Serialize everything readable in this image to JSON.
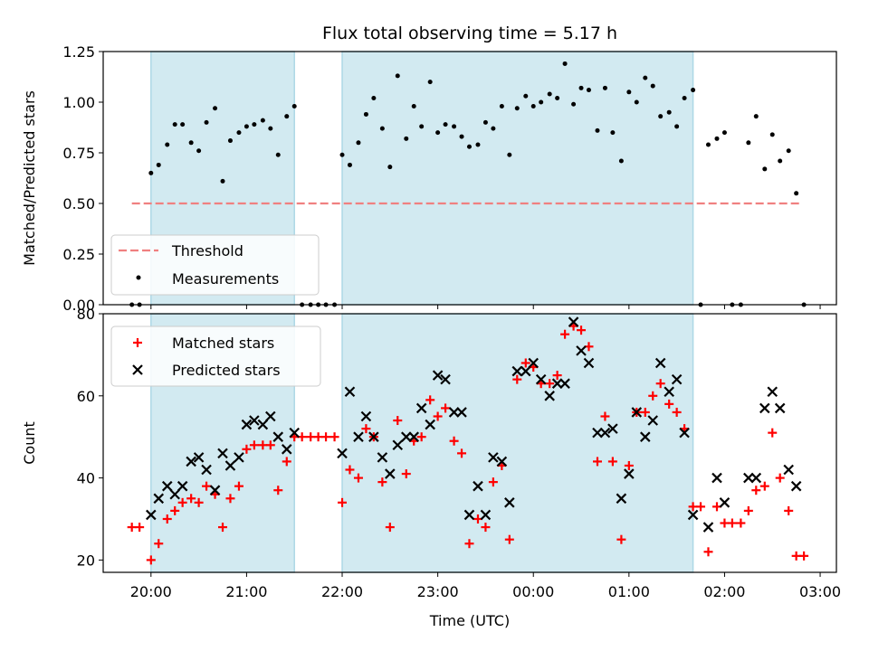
{
  "title": "Flux total observing time = 5.17 h",
  "colors": {
    "shade": "#add8e6",
    "threshold": "#f08080",
    "measurement": "#000000",
    "matched": "#ff0000",
    "predicted": "#000000"
  },
  "x_axis": {
    "label": "Time (UTC)",
    "ticks": [
      {
        "h": 20,
        "label": "20:00"
      },
      {
        "h": 21,
        "label": "21:00"
      },
      {
        "h": 22,
        "label": "22:00"
      },
      {
        "h": 23,
        "label": "23:00"
      },
      {
        "h": 24,
        "label": "00:00"
      },
      {
        "h": 25,
        "label": "01:00"
      },
      {
        "h": 26,
        "label": "02:00"
      },
      {
        "h": 27,
        "label": "03:00"
      }
    ]
  },
  "chart_data": [
    {
      "type": "scatter",
      "ylabel": "Matched/Predicted stars",
      "ylim": [
        0,
        1.25
      ],
      "yticks": [
        "0.00",
        "0.25",
        "0.50",
        "0.75",
        "1.00",
        "1.25"
      ],
      "shaded_intervals": [
        [
          20.0,
          21.5
        ],
        [
          22.0,
          25.67
        ]
      ],
      "legend_position": "lower-left",
      "threshold": {
        "name": "Threshold",
        "value": 0.5,
        "x_range": [
          19.8,
          26.8
        ]
      },
      "series": [
        {
          "name": "Measurements",
          "points": [
            [
              19.8,
              0
            ],
            [
              19.88,
              0
            ],
            [
              20.0,
              0.65
            ],
            [
              20.08,
              0.69
            ],
            [
              20.17,
              0.79
            ],
            [
              20.25,
              0.89
            ],
            [
              20.33,
              0.89
            ],
            [
              20.42,
              0.8
            ],
            [
              20.5,
              0.76
            ],
            [
              20.58,
              0.9
            ],
            [
              20.67,
              0.97
            ],
            [
              20.75,
              0.61
            ],
            [
              20.83,
              0.81
            ],
            [
              20.92,
              0.85
            ],
            [
              21.0,
              0.88
            ],
            [
              21.08,
              0.89
            ],
            [
              21.17,
              0.91
            ],
            [
              21.25,
              0.87
            ],
            [
              21.33,
              0.74
            ],
            [
              21.42,
              0.93
            ],
            [
              21.5,
              0.98
            ],
            [
              21.58,
              0
            ],
            [
              21.67,
              0
            ],
            [
              21.75,
              0
            ],
            [
              21.83,
              0
            ],
            [
              21.92,
              0
            ],
            [
              22.0,
              0.74
            ],
            [
              22.08,
              0.69
            ],
            [
              22.17,
              0.8
            ],
            [
              22.25,
              0.94
            ],
            [
              22.33,
              1.02
            ],
            [
              22.42,
              0.87
            ],
            [
              22.5,
              0.68
            ],
            [
              22.58,
              1.13
            ],
            [
              22.67,
              0.82
            ],
            [
              22.75,
              0.98
            ],
            [
              22.83,
              0.88
            ],
            [
              22.92,
              1.1
            ],
            [
              23.0,
              0.85
            ],
            [
              23.08,
              0.89
            ],
            [
              23.17,
              0.88
            ],
            [
              23.25,
              0.83
            ],
            [
              23.33,
              0.78
            ],
            [
              23.42,
              0.79
            ],
            [
              23.5,
              0.9
            ],
            [
              23.58,
              0.87
            ],
            [
              23.67,
              0.98
            ],
            [
              23.75,
              0.74
            ],
            [
              23.83,
              0.97
            ],
            [
              23.92,
              1.03
            ],
            [
              24.0,
              0.98
            ],
            [
              24.08,
              1.0
            ],
            [
              24.17,
              1.04
            ],
            [
              24.25,
              1.02
            ],
            [
              24.33,
              1.19
            ],
            [
              24.42,
              0.99
            ],
            [
              24.5,
              1.07
            ],
            [
              24.58,
              1.06
            ],
            [
              24.67,
              0.86
            ],
            [
              24.75,
              1.07
            ],
            [
              24.83,
              0.85
            ],
            [
              24.92,
              0.71
            ],
            [
              25.0,
              1.05
            ],
            [
              25.08,
              1.0
            ],
            [
              25.17,
              1.12
            ],
            [
              25.25,
              1.08
            ],
            [
              25.33,
              0.93
            ],
            [
              25.42,
              0.95
            ],
            [
              25.5,
              0.88
            ],
            [
              25.58,
              1.02
            ],
            [
              25.67,
              1.06
            ],
            [
              25.75,
              0
            ],
            [
              25.83,
              0.79
            ],
            [
              25.92,
              0.82
            ],
            [
              26.0,
              0.85
            ],
            [
              26.08,
              0
            ],
            [
              26.17,
              0
            ],
            [
              26.25,
              0.8
            ],
            [
              26.33,
              0.93
            ],
            [
              26.42,
              0.67
            ],
            [
              26.5,
              0.84
            ],
            [
              26.58,
              0.71
            ],
            [
              26.67,
              0.76
            ],
            [
              26.75,
              0.55
            ],
            [
              26.83,
              0
            ]
          ]
        }
      ]
    },
    {
      "type": "scatter",
      "ylabel": "Count",
      "ylim": [
        17,
        80
      ],
      "yticks": [
        "20",
        "40",
        "60",
        "80"
      ],
      "shaded_intervals": [
        [
          20.0,
          21.5
        ],
        [
          22.0,
          25.67
        ]
      ],
      "legend_position": "upper-left",
      "series": [
        {
          "name": "Matched stars",
          "points": [
            [
              19.8,
              28
            ],
            [
              19.88,
              28
            ],
            [
              20.0,
              20
            ],
            [
              20.08,
              24
            ],
            [
              20.17,
              30
            ],
            [
              20.25,
              32
            ],
            [
              20.33,
              34
            ],
            [
              20.42,
              35
            ],
            [
              20.5,
              34
            ],
            [
              20.58,
              38
            ],
            [
              20.67,
              36
            ],
            [
              20.75,
              28
            ],
            [
              20.83,
              35
            ],
            [
              20.92,
              38
            ],
            [
              21.0,
              47
            ],
            [
              21.08,
              48
            ],
            [
              21.17,
              48
            ],
            [
              21.25,
              48
            ],
            [
              21.33,
              37
            ],
            [
              21.42,
              44
            ],
            [
              21.5,
              50
            ],
            [
              21.58,
              50
            ],
            [
              21.67,
              50
            ],
            [
              21.75,
              50
            ],
            [
              21.83,
              50
            ],
            [
              21.92,
              50
            ],
            [
              22.0,
              34
            ],
            [
              22.08,
              42
            ],
            [
              22.17,
              40
            ],
            [
              22.25,
              52
            ],
            [
              22.33,
              50
            ],
            [
              22.42,
              39
            ],
            [
              22.5,
              28
            ],
            [
              22.58,
              54
            ],
            [
              22.67,
              41
            ],
            [
              22.75,
              49
            ],
            [
              22.83,
              50
            ],
            [
              22.92,
              59
            ],
            [
              23.0,
              55
            ],
            [
              23.08,
              57
            ],
            [
              23.17,
              49
            ],
            [
              23.25,
              46
            ],
            [
              23.33,
              24
            ],
            [
              23.42,
              30
            ],
            [
              23.5,
              28
            ],
            [
              23.58,
              39
            ],
            [
              23.67,
              43
            ],
            [
              23.75,
              25
            ],
            [
              23.83,
              64
            ],
            [
              23.92,
              68
            ],
            [
              24.0,
              67
            ],
            [
              24.08,
              63
            ],
            [
              24.17,
              63
            ],
            [
              24.25,
              65
            ],
            [
              24.33,
              75
            ],
            [
              24.42,
              77
            ],
            [
              24.5,
              76
            ],
            [
              24.58,
              72
            ],
            [
              24.67,
              44
            ],
            [
              24.75,
              55
            ],
            [
              24.83,
              44
            ],
            [
              24.92,
              25
            ],
            [
              25.0,
              43
            ],
            [
              25.08,
              56
            ],
            [
              25.17,
              56
            ],
            [
              25.25,
              60
            ],
            [
              25.33,
              63
            ],
            [
              25.42,
              58
            ],
            [
              25.5,
              56
            ],
            [
              25.58,
              52
            ],
            [
              25.67,
              33
            ],
            [
              25.75,
              33
            ],
            [
              25.83,
              22
            ],
            [
              25.92,
              33
            ],
            [
              26.0,
              29
            ],
            [
              26.08,
              29
            ],
            [
              26.17,
              29
            ],
            [
              26.25,
              32
            ],
            [
              26.33,
              37
            ],
            [
              26.42,
              38
            ],
            [
              26.5,
              51
            ],
            [
              26.58,
              40
            ],
            [
              26.67,
              32
            ],
            [
              26.75,
              21
            ],
            [
              26.83,
              21
            ]
          ]
        },
        {
          "name": "Predicted stars",
          "points": [
            [
              20.0,
              31
            ],
            [
              20.08,
              35
            ],
            [
              20.17,
              38
            ],
            [
              20.25,
              36
            ],
            [
              20.33,
              38
            ],
            [
              20.42,
              44
            ],
            [
              20.5,
              45
            ],
            [
              20.58,
              42
            ],
            [
              20.67,
              37
            ],
            [
              20.75,
              46
            ],
            [
              20.83,
              43
            ],
            [
              20.92,
              45
            ],
            [
              21.0,
              53
            ],
            [
              21.08,
              54
            ],
            [
              21.17,
              53
            ],
            [
              21.25,
              55
            ],
            [
              21.33,
              50
            ],
            [
              21.42,
              47
            ],
            [
              21.5,
              51
            ],
            [
              22.0,
              46
            ],
            [
              22.08,
              61
            ],
            [
              22.17,
              50
            ],
            [
              22.25,
              55
            ],
            [
              22.33,
              50
            ],
            [
              22.42,
              45
            ],
            [
              22.5,
              41
            ],
            [
              22.58,
              48
            ],
            [
              22.67,
              50
            ],
            [
              22.75,
              50
            ],
            [
              22.83,
              57
            ],
            [
              22.92,
              53
            ],
            [
              23.0,
              65
            ],
            [
              23.08,
              64
            ],
            [
              23.17,
              56
            ],
            [
              23.25,
              56
            ],
            [
              23.33,
              31
            ],
            [
              23.42,
              38
            ],
            [
              23.5,
              31
            ],
            [
              23.58,
              45
            ],
            [
              23.67,
              44
            ],
            [
              23.75,
              34
            ],
            [
              23.83,
              66
            ],
            [
              23.92,
              66
            ],
            [
              24.0,
              68
            ],
            [
              24.08,
              64
            ],
            [
              24.17,
              60
            ],
            [
              24.25,
              63
            ],
            [
              24.33,
              63
            ],
            [
              24.42,
              78
            ],
            [
              24.5,
              71
            ],
            [
              24.58,
              68
            ],
            [
              24.67,
              51
            ],
            [
              24.75,
              51
            ],
            [
              24.83,
              52
            ],
            [
              24.92,
              35
            ],
            [
              25.0,
              41
            ],
            [
              25.08,
              56
            ],
            [
              25.17,
              50
            ],
            [
              25.25,
              54
            ],
            [
              25.33,
              68
            ],
            [
              25.42,
              61
            ],
            [
              25.5,
              64
            ],
            [
              25.58,
              51
            ],
            [
              25.67,
              31
            ],
            [
              25.83,
              28
            ],
            [
              25.92,
              40
            ],
            [
              26.0,
              34
            ],
            [
              26.25,
              40
            ],
            [
              26.33,
              40
            ],
            [
              26.42,
              57
            ],
            [
              26.5,
              61
            ],
            [
              26.58,
              57
            ],
            [
              26.67,
              42
            ],
            [
              26.75,
              38
            ]
          ]
        }
      ]
    }
  ]
}
